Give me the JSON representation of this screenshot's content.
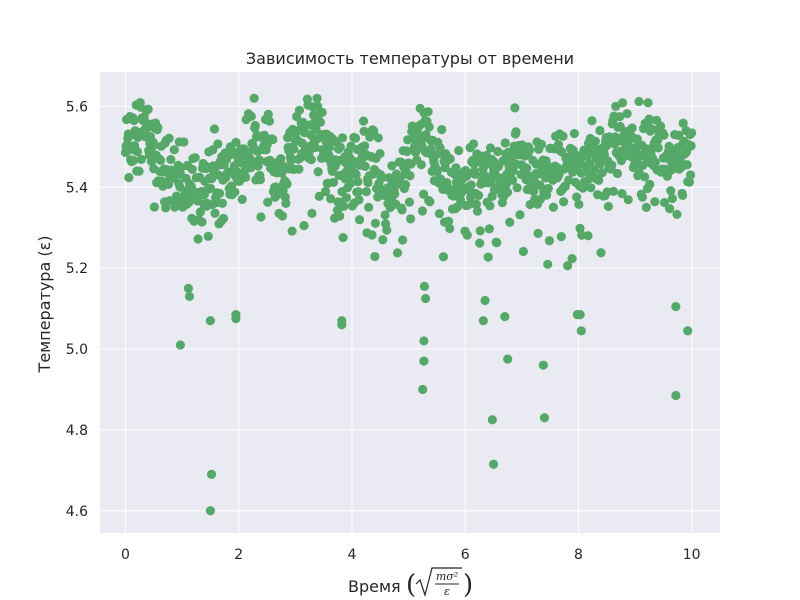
{
  "chart_data": {
    "type": "scatter",
    "title": "Зависимость температуры от времени",
    "xlabel_prefix": "Время",
    "xlabel_sqrt_num": "mσ²",
    "xlabel_sqrt_den": "ε",
    "ylabel": "Температура (ε)",
    "xlim": [
      -0.45,
      10.5
    ],
    "ylim": [
      4.545,
      5.685
    ],
    "x_ticks": [
      0,
      2,
      4,
      6,
      8,
      10
    ],
    "y_ticks": [
      4.6,
      4.8,
      5.0,
      5.2,
      5.4,
      5.6
    ],
    "x_tick_labels": [
      "0",
      "2",
      "4",
      "6",
      "8",
      "10"
    ],
    "y_tick_labels": [
      "4.6",
      "4.8",
      "5.0",
      "5.2",
      "5.4",
      "5.6"
    ],
    "grid": true,
    "style": "seaborn-darkgrid",
    "colors": {
      "background": "#eaeaf2",
      "grid": "#ffffff",
      "marker": "#55a868"
    },
    "n_points": 1000,
    "notable_low_points": [
      {
        "x": 1.5,
        "y": 4.6
      },
      {
        "x": 1.52,
        "y": 4.69
      },
      {
        "x": 6.5,
        "y": 4.715
      },
      {
        "x": 6.48,
        "y": 4.825
      },
      {
        "x": 7.4,
        "y": 4.83
      },
      {
        "x": 9.72,
        "y": 4.885
      },
      {
        "x": 5.25,
        "y": 4.9
      },
      {
        "x": 7.38,
        "y": 4.96
      },
      {
        "x": 5.27,
        "y": 4.97
      },
      {
        "x": 6.75,
        "y": 4.975
      },
      {
        "x": 0.97,
        "y": 5.01
      },
      {
        "x": 5.27,
        "y": 5.02
      },
      {
        "x": 9.93,
        "y": 5.045
      },
      {
        "x": 8.05,
        "y": 5.045
      },
      {
        "x": 3.82,
        "y": 5.06
      },
      {
        "x": 3.82,
        "y": 5.07
      },
      {
        "x": 1.5,
        "y": 5.07
      },
      {
        "x": 6.32,
        "y": 5.07
      },
      {
        "x": 1.95,
        "y": 5.075
      },
      {
        "x": 1.95,
        "y": 5.085
      },
      {
        "x": 7.98,
        "y": 5.085
      },
      {
        "x": 8.03,
        "y": 5.085
      },
      {
        "x": 6.7,
        "y": 5.08
      },
      {
        "x": 9.72,
        "y": 5.105
      },
      {
        "x": 5.3,
        "y": 5.125
      },
      {
        "x": 6.35,
        "y": 5.12
      },
      {
        "x": 1.13,
        "y": 5.13
      },
      {
        "x": 5.28,
        "y": 5.155
      }
    ]
  }
}
